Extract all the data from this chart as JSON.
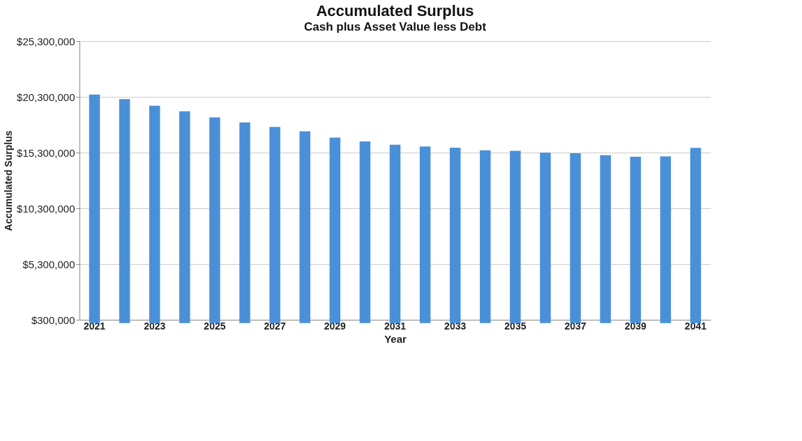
{
  "chart_data": {
    "type": "bar",
    "title": "Accumulated Surplus",
    "subtitle": "Cash plus Asset Value less Debt",
    "xlabel": "Year",
    "ylabel": "Accumulated Surplus",
    "categories": [
      "2021",
      null,
      "2023",
      null,
      "2025",
      null,
      "2027",
      null,
      "2029",
      null,
      "2031",
      null,
      "2033",
      null,
      "2035",
      null,
      "2037",
      null,
      "2039",
      null,
      "2041"
    ],
    "series": [
      {
        "color": "#4a90d8",
        "values": [
          20500000,
          20100000,
          19500000,
          19000000,
          18450000,
          18000000,
          17600000,
          17200000,
          16650000,
          16300000,
          16000000,
          15850000,
          15740000,
          15500000,
          15450000,
          15300000,
          15240000,
          15070000,
          14930000,
          14950000,
          15720000
        ]
      }
    ],
    "ylim": [
      300000,
      25300000
    ],
    "yticks": [
      {
        "value": 300000,
        "label": "$300,000"
      },
      {
        "value": 5300000,
        "label": "$5,300,000"
      },
      {
        "value": 10300000,
        "label": "$10,300,000"
      },
      {
        "value": 15300000,
        "label": "$15,300,000"
      },
      {
        "value": 20300000,
        "label": "$20,300,000"
      },
      {
        "value": 25300000,
        "label": "$25,300,000"
      }
    ],
    "grid": "y",
    "legend": false
  }
}
